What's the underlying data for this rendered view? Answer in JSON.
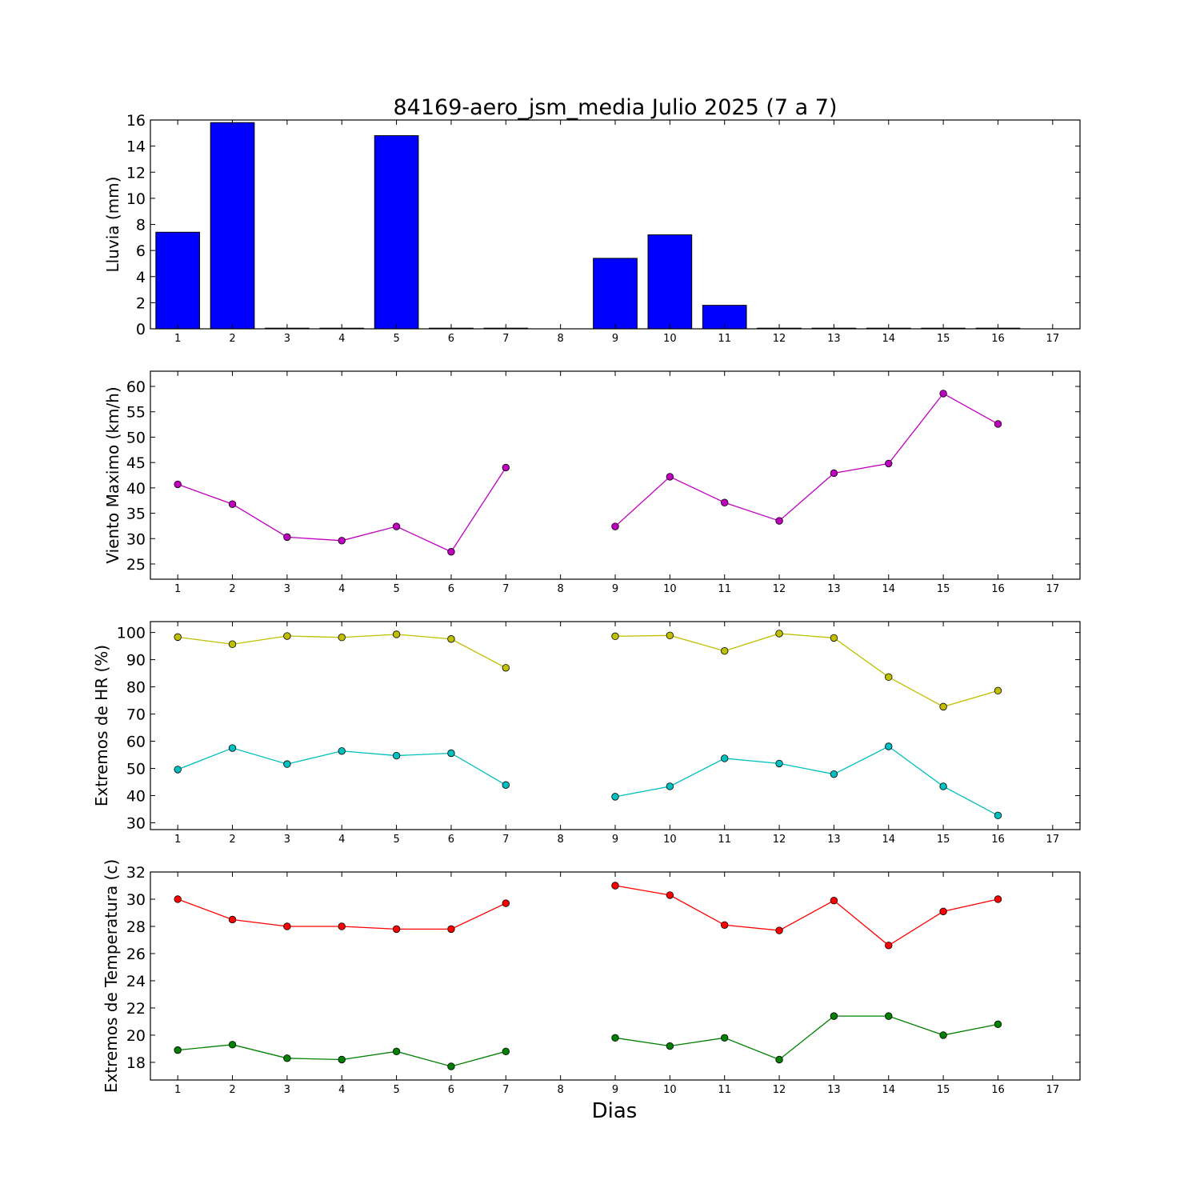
{
  "chart_data": [
    {
      "type": "bar",
      "title": "84169-aero_jsm_media Julio 2025  (7 a 7)",
      "ylabel": "Lluvia (mm)",
      "xlabel": "",
      "categories": [
        1,
        2,
        3,
        4,
        5,
        6,
        7,
        8,
        9,
        10,
        11,
        12,
        13,
        14,
        15,
        16,
        17
      ],
      "values": [
        7.4,
        15.8,
        0,
        0,
        14.8,
        0,
        0,
        null,
        5.4,
        7.2,
        1.8,
        0,
        0,
        0,
        0,
        0,
        null
      ],
      "xlim": [
        0.5,
        17.5
      ],
      "ylim": [
        0,
        16
      ],
      "yticks": [
        0,
        2,
        4,
        6,
        8,
        10,
        12,
        14,
        16
      ],
      "color": "#0000ff"
    },
    {
      "type": "line",
      "ylabel": "Viento Maximo (km/h)",
      "x": [
        1,
        2,
        3,
        4,
        5,
        6,
        7,
        8,
        9,
        10,
        11,
        12,
        13,
        14,
        15,
        16
      ],
      "series": [
        {
          "values": [
            40.7,
            36.8,
            30.3,
            29.6,
            32.4,
            27.4,
            44.0,
            null,
            32.4,
            42.2,
            37.1,
            33.5,
            42.9,
            44.8,
            58.6,
            52.6
          ],
          "color": "#bf00bf"
        }
      ],
      "xlim": [
        0.5,
        17.5
      ],
      "ylim": [
        22,
        63
      ],
      "yticks": [
        25,
        30,
        35,
        40,
        45,
        50,
        55,
        60
      ]
    },
    {
      "type": "line",
      "ylabel": "Extremos de HR (%)",
      "x": [
        1,
        2,
        3,
        4,
        5,
        6,
        7,
        8,
        9,
        10,
        11,
        12,
        13,
        14,
        15,
        16
      ],
      "series": [
        {
          "values": [
            98.3,
            95.7,
            98.7,
            98.2,
            99.3,
            97.6,
            87.0,
            null,
            98.6,
            98.9,
            93.2,
            99.6,
            98.0,
            83.6,
            72.7,
            78.6
          ],
          "color": "#bfbf00"
        },
        {
          "values": [
            49.6,
            57.5,
            51.6,
            56.4,
            54.7,
            55.6,
            43.9,
            null,
            39.6,
            43.4,
            53.7,
            51.8,
            47.9,
            58.1,
            43.4,
            32.7
          ],
          "color": "#00bfbf"
        }
      ],
      "xlim": [
        0.5,
        17.5
      ],
      "ylim": [
        27.5,
        104
      ],
      "yticks": [
        30,
        40,
        50,
        60,
        70,
        80,
        90,
        100
      ]
    },
    {
      "type": "line",
      "ylabel": "Extremos de Temperatura (c)",
      "xlabel": "Dias",
      "x": [
        1,
        2,
        3,
        4,
        5,
        6,
        7,
        8,
        9,
        10,
        11,
        12,
        13,
        14,
        15,
        16
      ],
      "series": [
        {
          "values": [
            30.0,
            28.5,
            28.0,
            28.0,
            27.8,
            27.8,
            29.7,
            null,
            31.0,
            30.3,
            28.1,
            27.7,
            29.9,
            26.6,
            29.1,
            30.0
          ],
          "color": "#ff0000"
        },
        {
          "values": [
            18.9,
            19.3,
            18.3,
            18.2,
            18.8,
            17.7,
            18.8,
            null,
            19.8,
            19.2,
            19.8,
            18.2,
            21.4,
            21.4,
            20.0,
            20.8
          ],
          "color": "#008000"
        }
      ],
      "xlim": [
        0.5,
        17.5
      ],
      "ylim": [
        16.7,
        32
      ],
      "yticks": [
        18,
        20,
        22,
        24,
        26,
        28,
        30,
        32
      ]
    }
  ]
}
